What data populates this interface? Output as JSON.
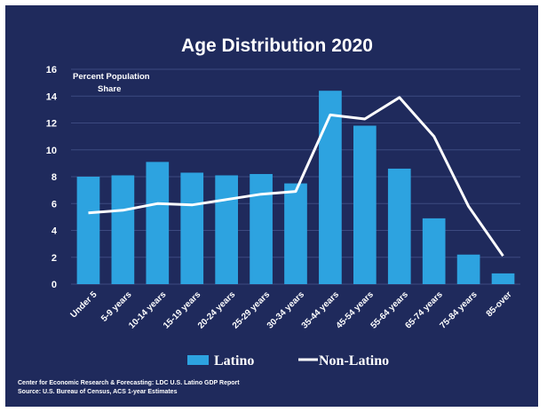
{
  "chart_data": {
    "type": "bar",
    "title": "Age Distribution 2020",
    "ylabel_note": [
      "Percent Population",
      "Share"
    ],
    "ylim": [
      0,
      16
    ],
    "yticks": [
      "0",
      "2",
      "4",
      "6",
      "8",
      "10",
      "12",
      "14",
      "16"
    ],
    "grid": true,
    "legend_position": "bottom",
    "categories": [
      "Under 5",
      "5-9 years",
      "10-14 years",
      "15-19 years",
      "20-24 years",
      "25-29 years",
      "30-34 years",
      "35-44 years",
      "45-54 years",
      "55-64 years",
      "65-74 years",
      "75-84 years",
      "85-over"
    ],
    "series": [
      {
        "name": "Latino",
        "kind": "bar",
        "color": "#2da3e0",
        "values": [
          8.0,
          8.1,
          9.1,
          8.3,
          8.1,
          8.2,
          7.5,
          14.4,
          11.8,
          8.6,
          4.9,
          2.2,
          0.8
        ]
      },
      {
        "name": "Non-Latino",
        "kind": "line",
        "color": "#ffffff",
        "values": [
          5.3,
          5.5,
          6.0,
          5.9,
          6.3,
          6.7,
          6.9,
          12.6,
          12.3,
          13.9,
          11.0,
          5.8,
          2.1
        ]
      }
    ],
    "source": [
      "Center for Economic Research & Forecasting: LDC U.S. Latino GDP Report",
      "Source: U.S. Bureau of Census, ACS 1-year Estimates"
    ]
  },
  "colors": {
    "background": "#1f2a5c",
    "grid": "#3d4a80",
    "bar": "#2da3e0",
    "line": "#ffffff"
  }
}
